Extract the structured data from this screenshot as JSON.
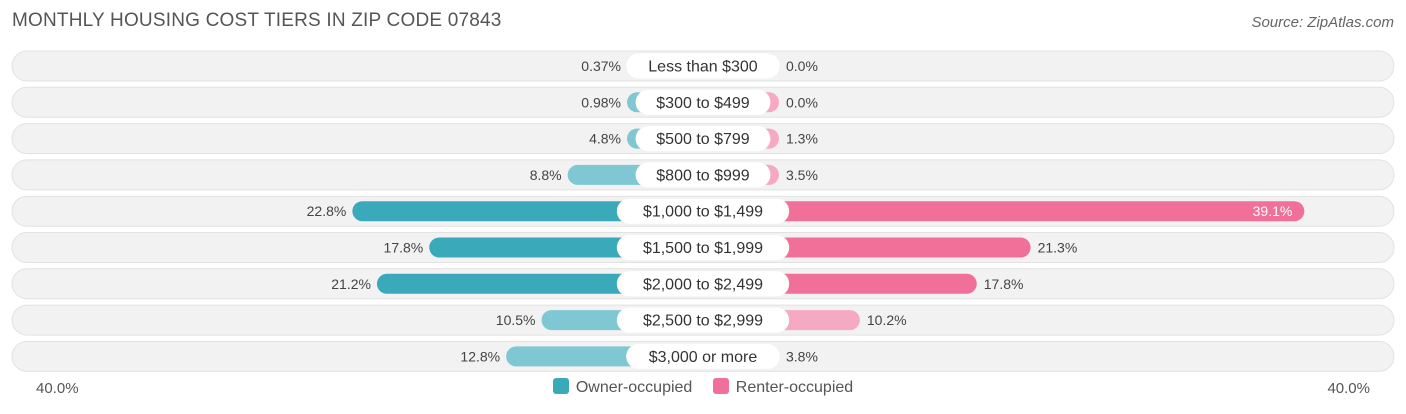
{
  "header": {
    "title": "MONTHLY HOUSING COST TIERS IN ZIP CODE 07843",
    "source": "Source: ZipAtlas.com"
  },
  "chart_data": {
    "type": "bar",
    "orientation": "diverging-horizontal",
    "categories": [
      "Less than $300",
      "$300 to $499",
      "$500 to $799",
      "$800 to $999",
      "$1,000 to $1,499",
      "$1,500 to $1,999",
      "$2,000 to $2,499",
      "$2,500 to $2,999",
      "$3,000 or more"
    ],
    "series": [
      {
        "name": "Owner-occupied",
        "color": "#3aaabb",
        "values": [
          0.37,
          0.98,
          4.8,
          8.8,
          22.8,
          17.8,
          21.2,
          10.5,
          12.8
        ],
        "labels": [
          "0.37%",
          "0.98%",
          "4.8%",
          "8.8%",
          "22.8%",
          "17.8%",
          "21.2%",
          "10.5%",
          "12.8%"
        ]
      },
      {
        "name": "Renter-occupied",
        "color": "#f0709a",
        "values": [
          0.0,
          0.0,
          1.3,
          3.5,
          39.1,
          21.3,
          17.8,
          10.2,
          3.8
        ],
        "labels": [
          "0.0%",
          "0.0%",
          "1.3%",
          "3.5%",
          "39.1%",
          "21.3%",
          "17.8%",
          "10.2%",
          "3.8%"
        ]
      }
    ],
    "axis": {
      "min_label": "40.0%",
      "max_label": "40.0%",
      "range": [
        -40,
        40
      ]
    },
    "legend": [
      "Owner-occupied",
      "Renter-occupied"
    ]
  }
}
